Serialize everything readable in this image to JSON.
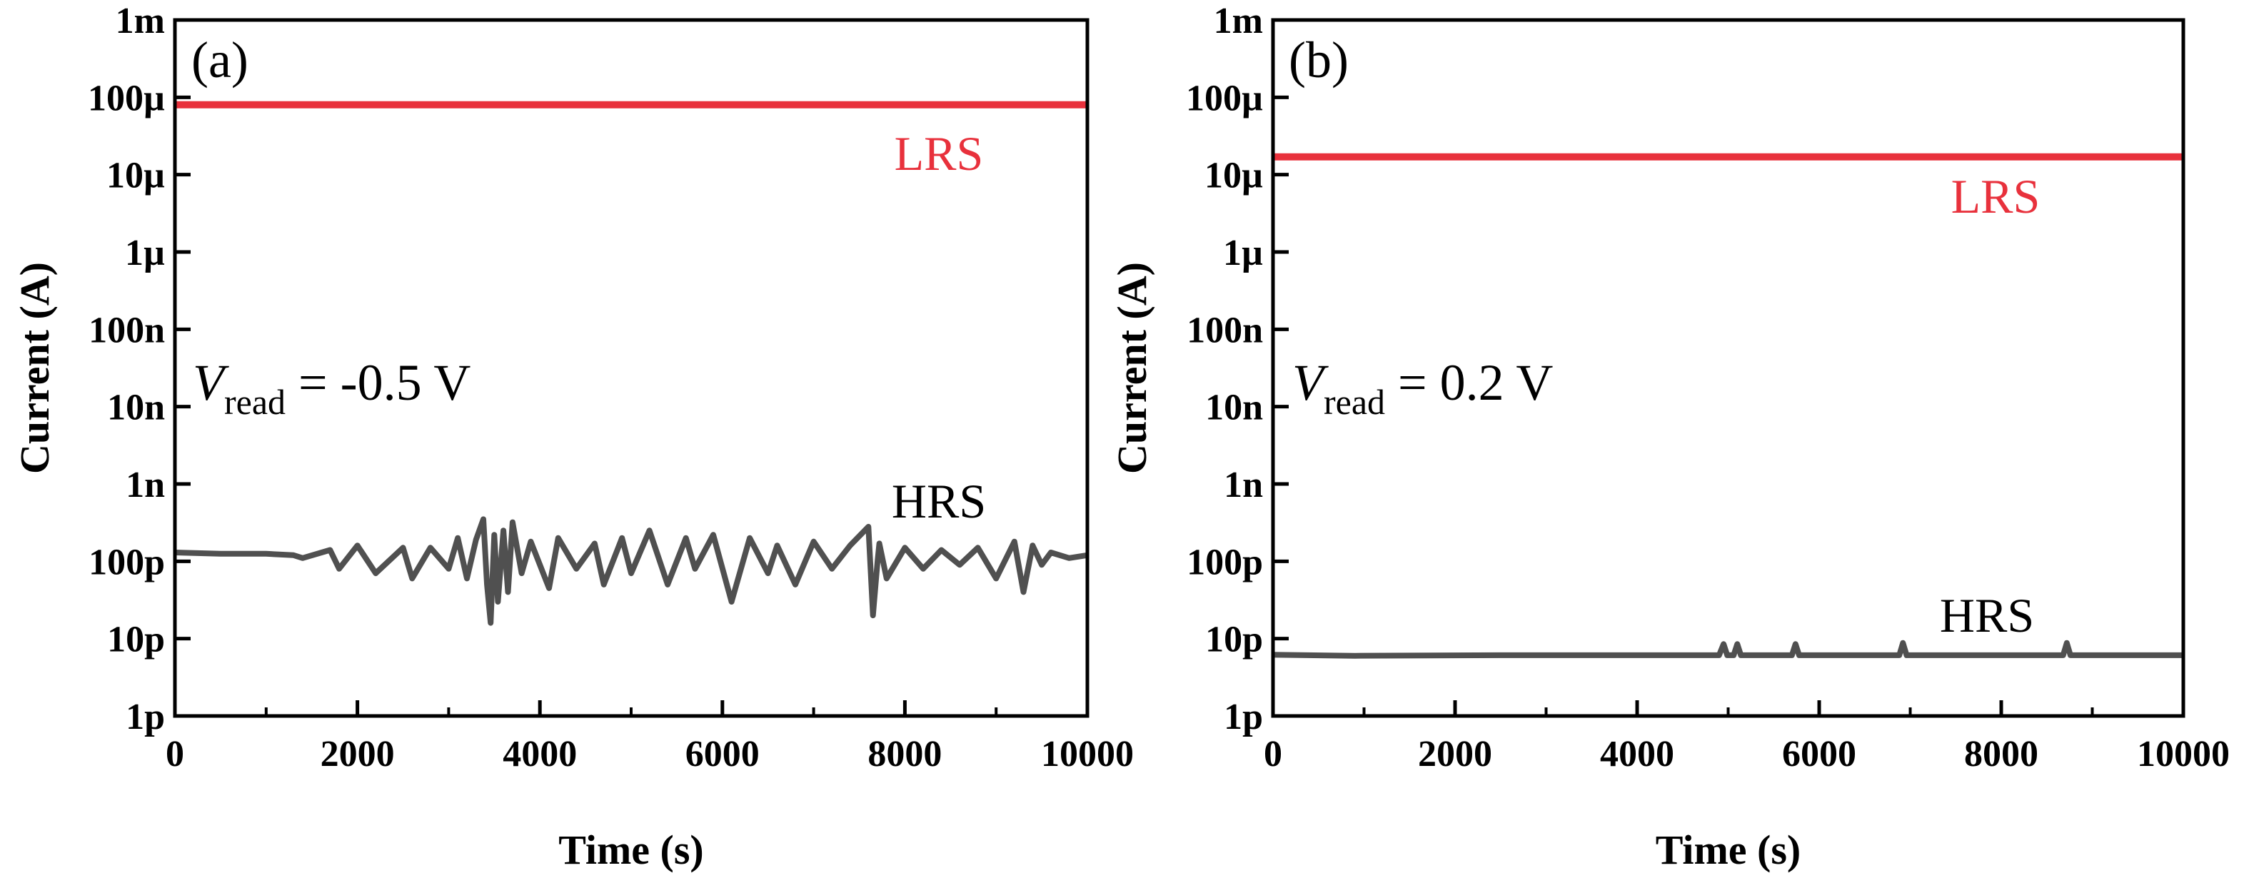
{
  "chart_data": [
    {
      "type": "line",
      "panel_label": "(a)",
      "xlabel": "Time (s)",
      "ylabel": "Current (A)",
      "xlim": [
        0,
        10000
      ],
      "ylim": [
        1e-12,
        0.001
      ],
      "yscale": "log",
      "x_ticks": [
        0,
        2000,
        4000,
        6000,
        8000,
        10000
      ],
      "y_ticks": [
        {
          "value": 0.001,
          "label": "1m"
        },
        {
          "value": 0.0001,
          "label": "100µ"
        },
        {
          "value": 1e-05,
          "label": "10µ"
        },
        {
          "value": 1e-06,
          "label": "1µ"
        },
        {
          "value": 1e-07,
          "label": "100n"
        },
        {
          "value": 1e-08,
          "label": "10n"
        },
        {
          "value": 1e-09,
          "label": "1n"
        },
        {
          "value": 1e-10,
          "label": "100p"
        },
        {
          "value": 1e-11,
          "label": "10p"
        },
        {
          "value": 1e-12,
          "label": "1p"
        }
      ],
      "annotation": {
        "v": "V",
        "sub": "read",
        "rest": " = -0.5 V"
      },
      "grid": false,
      "series": [
        {
          "name": "LRS",
          "color": "#e8313c",
          "x": [
            0,
            10000
          ],
          "y": [
            8e-05,
            8e-05
          ]
        },
        {
          "name": "HRS",
          "color": "#505050",
          "x": [
            0,
            500,
            1000,
            1300,
            1400,
            1700,
            1800,
            2000,
            2200,
            2500,
            2600,
            2800,
            3000,
            3100,
            3200,
            3300,
            3380,
            3420,
            3460,
            3500,
            3540,
            3600,
            3650,
            3700,
            3800,
            3900,
            4100,
            4200,
            4400,
            4600,
            4700,
            4900,
            5000,
            5200,
            5400,
            5600,
            5700,
            5900,
            6100,
            6300,
            6500,
            6600,
            6800,
            7000,
            7200,
            7400,
            7600,
            7650,
            7700,
            7720,
            7800,
            8000,
            8200,
            8400,
            8600,
            8800,
            9000,
            9200,
            9300,
            9400,
            9500,
            9600,
            9800,
            10000
          ],
          "y": [
            1.3e-10,
            1.25e-10,
            1.25e-10,
            1.2e-10,
            1.1e-10,
            1.4e-10,
            8e-11,
            1.6e-10,
            7e-11,
            1.5e-10,
            6e-11,
            1.5e-10,
            8e-11,
            2e-10,
            6e-11,
            1.9e-10,
            3.5e-10,
            5e-11,
            1.6e-11,
            2.2e-10,
            3e-11,
            2.5e-10,
            4e-11,
            3.2e-10,
            7e-11,
            1.8e-10,
            4.5e-11,
            2e-10,
            8e-11,
            1.7e-10,
            5e-11,
            2e-10,
            7e-11,
            2.5e-10,
            5e-11,
            2e-10,
            8e-11,
            2.2e-10,
            3e-11,
            2e-10,
            7e-11,
            1.6e-10,
            5e-11,
            1.8e-10,
            8e-11,
            1.6e-10,
            2.8e-10,
            2e-11,
            1e-10,
            1.7e-10,
            6e-11,
            1.5e-10,
            8e-11,
            1.4e-10,
            9e-11,
            1.5e-10,
            6e-11,
            1.8e-10,
            4e-11,
            1.6e-10,
            9e-11,
            1.3e-10,
            1.1e-10,
            1.2e-10
          ]
        }
      ]
    },
    {
      "type": "line",
      "panel_label": "(b)",
      "xlabel": "Time (s)",
      "ylabel": "Current (A)",
      "xlim": [
        0,
        10000
      ],
      "ylim": [
        1e-12,
        0.001
      ],
      "yscale": "log",
      "x_ticks": [
        0,
        2000,
        4000,
        6000,
        8000,
        10000
      ],
      "y_ticks": [
        {
          "value": 0.001,
          "label": "1m"
        },
        {
          "value": 0.0001,
          "label": "100µ"
        },
        {
          "value": 1e-05,
          "label": "10µ"
        },
        {
          "value": 1e-06,
          "label": "1µ"
        },
        {
          "value": 1e-07,
          "label": "100n"
        },
        {
          "value": 1e-08,
          "label": "10n"
        },
        {
          "value": 1e-09,
          "label": "1n"
        },
        {
          "value": 1e-10,
          "label": "100p"
        },
        {
          "value": 1e-11,
          "label": "10p"
        },
        {
          "value": 1e-12,
          "label": "1p"
        }
      ],
      "annotation": {
        "v": "V",
        "sub": "read",
        "rest": " = 0.2 V"
      },
      "grid": false,
      "series": [
        {
          "name": "LRS",
          "color": "#e8313c",
          "x": [
            0,
            10000
          ],
          "y": [
            1.7e-05,
            1.7e-05
          ]
        },
        {
          "name": "HRS",
          "color": "#505050",
          "x": [
            0,
            900,
            2500,
            4900,
            4950,
            4990,
            5060,
            5100,
            5140,
            5700,
            5740,
            5780,
            6880,
            6920,
            6960,
            8680,
            8720,
            8760,
            10000
          ],
          "y": [
            6.2e-12,
            6e-12,
            6.1e-12,
            6.1e-12,
            8.5e-12,
            6.1e-12,
            6.1e-12,
            8.5e-12,
            6.1e-12,
            6.1e-12,
            8.5e-12,
            6.1e-12,
            6.1e-12,
            8.8e-12,
            6.1e-12,
            6.1e-12,
            8.8e-12,
            6.1e-12,
            6.1e-12
          ]
        }
      ]
    }
  ]
}
